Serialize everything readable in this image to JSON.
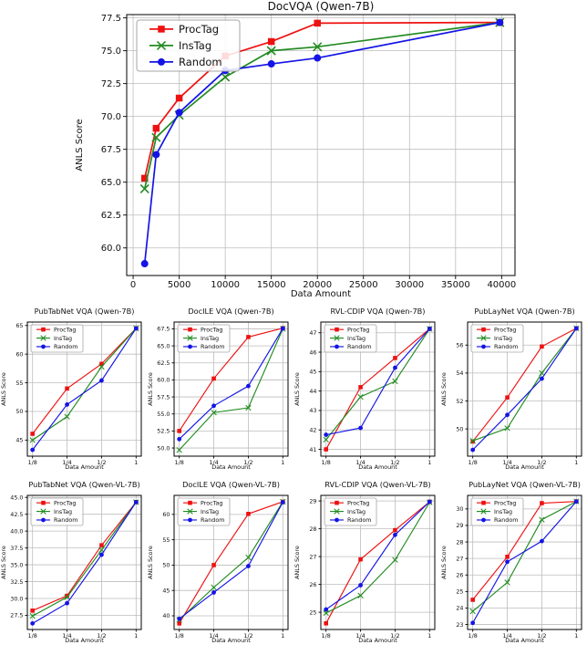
{
  "colors": {
    "proctag": "#ee1111",
    "instag": "#228b22",
    "random": "#1414e6",
    "grid": "#bdbdbd",
    "axis": "#000000",
    "legend_border": "#a6a6a6"
  },
  "legend_labels": [
    "ProcTag",
    "InsTag",
    "Random"
  ],
  "chart_data": [
    {
      "id": "docvqa-qwen-7b",
      "type": "line",
      "title": "DocVQA (Qwen-7B)",
      "xlabel": "Data Amount",
      "ylabel": "ANLS Score",
      "xlim": [
        -700,
        41450
      ],
      "ylim": [
        57.9,
        77.75
      ],
      "xticks": {
        "values": [
          0,
          5000,
          10000,
          15000,
          20000,
          25000,
          30000,
          35000,
          40000
        ],
        "labels": [
          "0",
          "5000",
          "10000",
          "15000",
          "20000",
          "25000",
          "30000",
          "35000",
          "40000"
        ]
      },
      "yticks": {
        "values": [
          60.0,
          62.5,
          65.0,
          67.5,
          70.0,
          72.5,
          75.0,
          77.5
        ],
        "labels": [
          "60.0",
          "62.5",
          "65.0",
          "67.5",
          "70.0",
          "72.5",
          "75.0",
          "77.5"
        ]
      },
      "x": [
        1250,
        2500,
        5000,
        10000,
        15000,
        20000,
        39800
      ],
      "series": [
        {
          "name": "ProcTag",
          "marker": "square",
          "color": "proctag",
          "values": [
            65.3,
            69.1,
            71.4,
            74.6,
            75.7,
            77.1,
            77.15
          ]
        },
        {
          "name": "InsTag",
          "marker": "x",
          "color": "instag",
          "values": [
            64.5,
            68.4,
            70.1,
            73.0,
            75.0,
            75.3,
            77.15
          ]
        },
        {
          "name": "Random",
          "marker": "circle",
          "color": "random",
          "values": [
            58.8,
            67.1,
            70.3,
            73.5,
            74.0,
            74.45,
            77.15
          ]
        }
      ]
    },
    {
      "id": "pubtabnet-vqa-qwen-7b",
      "type": "line",
      "title": "PubTabNet VQA (Qwen-7B)",
      "xlabel": "Data Amount",
      "ylabel": "ANLS Score",
      "xlim": [
        -0.15,
        3.15
      ],
      "ylim": [
        42.2,
        65.6
      ],
      "xticks": {
        "values": [
          0,
          1,
          2,
          3
        ],
        "labels": [
          "1/8",
          "1/4",
          "1/2",
          "1"
        ]
      },
      "yticks": {
        "values": [
          45,
          50,
          55,
          60,
          65
        ],
        "labels": [
          "45",
          "50",
          "55",
          "60",
          "65"
        ]
      },
      "x": [
        0,
        1,
        2,
        3
      ],
      "series": [
        {
          "name": "ProcTag",
          "marker": "square",
          "color": "proctag",
          "values": [
            46.1,
            54.0,
            58.3,
            64.5
          ]
        },
        {
          "name": "InsTag",
          "marker": "x",
          "color": "instag",
          "values": [
            45.0,
            49.1,
            57.8,
            64.5
          ]
        },
        {
          "name": "Random",
          "marker": "circle",
          "color": "random",
          "values": [
            43.3,
            51.2,
            55.4,
            64.5
          ]
        }
      ]
    },
    {
      "id": "docile-vqa-qwen-7b",
      "type": "line",
      "title": "DocILE VQA (Qwen-7B)",
      "xlabel": "Data Amount",
      "ylabel": "ANLS Score",
      "xlim": [
        -0.15,
        3.15
      ],
      "ylim": [
        48.8,
        68.5
      ],
      "xticks": {
        "values": [
          0,
          1,
          2,
          3
        ],
        "labels": [
          "1/8",
          "1/4",
          "1/2",
          "1"
        ]
      },
      "yticks": {
        "values": [
          50.0,
          52.5,
          55.0,
          57.5,
          60.0,
          62.5,
          65.0,
          67.5
        ],
        "labels": [
          "50.0",
          "52.5",
          "55.0",
          "57.5",
          "60.0",
          "62.5",
          "65.0",
          "67.5"
        ]
      },
      "x": [
        0,
        1,
        2,
        3
      ],
      "series": [
        {
          "name": "ProcTag",
          "marker": "square",
          "color": "proctag",
          "values": [
            52.5,
            60.2,
            66.3,
            67.6
          ]
        },
        {
          "name": "InsTag",
          "marker": "x",
          "color": "instag",
          "values": [
            49.7,
            55.2,
            55.9,
            67.5
          ]
        },
        {
          "name": "Random",
          "marker": "circle",
          "color": "random",
          "values": [
            51.3,
            56.2,
            59.1,
            67.55
          ]
        }
      ]
    },
    {
      "id": "rvl-cdip-vqa-qwen-7b",
      "type": "line",
      "title": "RVL-CDIP VQA (Qwen-7B)",
      "xlabel": "Data Amount",
      "ylabel": "ANLS Score",
      "xlim": [
        -0.15,
        3.15
      ],
      "ylim": [
        40.65,
        47.55
      ],
      "xticks": {
        "values": [
          0,
          1,
          2,
          3
        ],
        "labels": [
          "1/8",
          "1/4",
          "1/2",
          "1"
        ]
      },
      "yticks": {
        "values": [
          41,
          42,
          43,
          44,
          45,
          46,
          47
        ],
        "labels": [
          "41",
          "42",
          "43",
          "44",
          "45",
          "46",
          "47"
        ]
      },
      "x": [
        0,
        1,
        2,
        3
      ],
      "series": [
        {
          "name": "ProcTag",
          "marker": "square",
          "color": "proctag",
          "values": [
            41.0,
            44.2,
            45.7,
            47.2
          ]
        },
        {
          "name": "InsTag",
          "marker": "x",
          "color": "instag",
          "values": [
            41.5,
            43.7,
            44.5,
            47.2
          ]
        },
        {
          "name": "Random",
          "marker": "circle",
          "color": "random",
          "values": [
            41.75,
            42.1,
            45.2,
            47.2
          ]
        }
      ]
    },
    {
      "id": "publaynet-vqa-qwen-7b",
      "type": "line",
      "title": "PubLayNet VQA (Qwen-7B)",
      "xlabel": "Data Amount",
      "ylabel": "ANLS Score",
      "xlim": [
        -0.15,
        3.15
      ],
      "ylim": [
        48.05,
        57.65
      ],
      "xticks": {
        "values": [
          0,
          1,
          2,
          3
        ],
        "labels": [
          "1/8",
          "1/4",
          "1/2",
          "1"
        ]
      },
      "yticks": {
        "values": [
          50,
          52,
          54,
          56
        ],
        "labels": [
          "50",
          "52",
          "54",
          "56"
        ]
      },
      "x": [
        0,
        1,
        2,
        3
      ],
      "series": [
        {
          "name": "ProcTag",
          "marker": "square",
          "color": "proctag",
          "values": [
            49.1,
            52.25,
            55.9,
            57.2
          ]
        },
        {
          "name": "InsTag",
          "marker": "x",
          "color": "instag",
          "values": [
            49.15,
            50.05,
            54.0,
            57.2
          ]
        },
        {
          "name": "Random",
          "marker": "circle",
          "color": "random",
          "values": [
            48.5,
            51.0,
            53.6,
            57.2
          ]
        }
      ]
    },
    {
      "id": "pubtabnet-vqa-qwen-vl-7b",
      "type": "line",
      "title": "PubTabNet VQA (Qwen-VL-7B)",
      "xlabel": "Data Amount",
      "ylabel": "ANLS Score",
      "xlim": [
        -0.15,
        3.15
      ],
      "ylim": [
        25.4,
        45.3
      ],
      "xticks": {
        "values": [
          0,
          1,
          2,
          3
        ],
        "labels": [
          "1/8",
          "1/4",
          "1/2",
          "1"
        ]
      },
      "yticks": {
        "values": [
          27.5,
          30.0,
          32.5,
          35.0,
          37.5,
          40.0,
          42.5,
          45.0
        ],
        "labels": [
          "27.5",
          "30.0",
          "32.5",
          "35.0",
          "37.5",
          "40.0",
          "42.5",
          "45.0"
        ]
      },
      "x": [
        0,
        1,
        2,
        3
      ],
      "series": [
        {
          "name": "ProcTag",
          "marker": "square",
          "color": "proctag",
          "values": [
            28.2,
            30.4,
            37.9,
            44.3
          ]
        },
        {
          "name": "InsTag",
          "marker": "x",
          "color": "instag",
          "values": [
            27.4,
            30.2,
            37.2,
            44.3
          ]
        },
        {
          "name": "Random",
          "marker": "circle",
          "color": "random",
          "values": [
            26.3,
            29.3,
            36.5,
            44.3
          ]
        }
      ]
    },
    {
      "id": "docile-vqa-qwen-vl-7b",
      "type": "line",
      "title": "DocILE VQA (Qwen-VL-7B)",
      "xlabel": "Data Amount",
      "ylabel": "ANLS Score",
      "xlim": [
        -0.15,
        3.15
      ],
      "ylim": [
        37.3,
        63.75
      ],
      "xticks": {
        "values": [
          0,
          1,
          2,
          3
        ],
        "labels": [
          "1/8",
          "1/4",
          "1/2",
          "1"
        ]
      },
      "yticks": {
        "values": [
          40,
          45,
          50,
          55,
          60
        ],
        "labels": [
          "40",
          "45",
          "50",
          "55",
          "60"
        ]
      },
      "x": [
        0,
        1,
        2,
        3
      ],
      "series": [
        {
          "name": "ProcTag",
          "marker": "square",
          "color": "proctag",
          "values": [
            38.5,
            50.0,
            60.1,
            62.5
          ]
        },
        {
          "name": "InsTag",
          "marker": "x",
          "color": "instag",
          "values": [
            39.2,
            45.6,
            51.5,
            62.5
          ]
        },
        {
          "name": "Random",
          "marker": "circle",
          "color": "random",
          "values": [
            39.4,
            44.6,
            49.8,
            62.4
          ]
        }
      ]
    },
    {
      "id": "rvl-cdip-vqa-qwen-vl-7b",
      "type": "line",
      "title": "RVL-CDIP VQA (Qwen-VL-7B)",
      "xlabel": "Data Amount",
      "ylabel": "ANLS Score",
      "xlim": [
        -0.15,
        3.15
      ],
      "ylim": [
        24.38,
        29.2
      ],
      "xticks": {
        "values": [
          0,
          1,
          2,
          3
        ],
        "labels": [
          "1/8",
          "1/4",
          "1/2",
          "1"
        ]
      },
      "yticks": {
        "values": [
          25,
          26,
          27,
          28,
          29
        ],
        "labels": [
          "25",
          "26",
          "27",
          "28",
          "29"
        ]
      },
      "x": [
        0,
        1,
        2,
        3
      ],
      "series": [
        {
          "name": "ProcTag",
          "marker": "square",
          "color": "proctag",
          "values": [
            24.6,
            26.9,
            27.95,
            28.97
          ]
        },
        {
          "name": "InsTag",
          "marker": "x",
          "color": "instag",
          "values": [
            24.97,
            25.6,
            26.88,
            28.95
          ]
        },
        {
          "name": "Random",
          "marker": "circle",
          "color": "random",
          "values": [
            25.1,
            25.97,
            27.78,
            28.97
          ]
        }
      ]
    },
    {
      "id": "publaynet-vqa-qwen-vl-7b",
      "type": "line",
      "title": "PubLayNet VQA (Qwen-VL-7B)",
      "xlabel": "Data Amount",
      "ylabel": "ANLS Score",
      "xlim": [
        -0.15,
        3.15
      ],
      "ylim": [
        22.7,
        30.82
      ],
      "xticks": {
        "values": [
          0,
          1,
          2,
          3
        ],
        "labels": [
          "1/8",
          "1/4",
          "1/2",
          "1"
        ]
      },
      "yticks": {
        "values": [
          23,
          24,
          25,
          26,
          27,
          28,
          29,
          30
        ],
        "labels": [
          "23",
          "24",
          "25",
          "26",
          "27",
          "28",
          "29",
          "30"
        ]
      },
      "x": [
        0,
        1,
        2,
        3
      ],
      "series": [
        {
          "name": "ProcTag",
          "marker": "square",
          "color": "proctag",
          "values": [
            24.5,
            27.1,
            30.35,
            30.45
          ]
        },
        {
          "name": "InsTag",
          "marker": "x",
          "color": "instag",
          "values": [
            23.8,
            25.55,
            29.35,
            30.45
          ]
        },
        {
          "name": "Random",
          "marker": "circle",
          "color": "random",
          "values": [
            23.1,
            26.8,
            28.05,
            30.45
          ]
        }
      ]
    }
  ]
}
